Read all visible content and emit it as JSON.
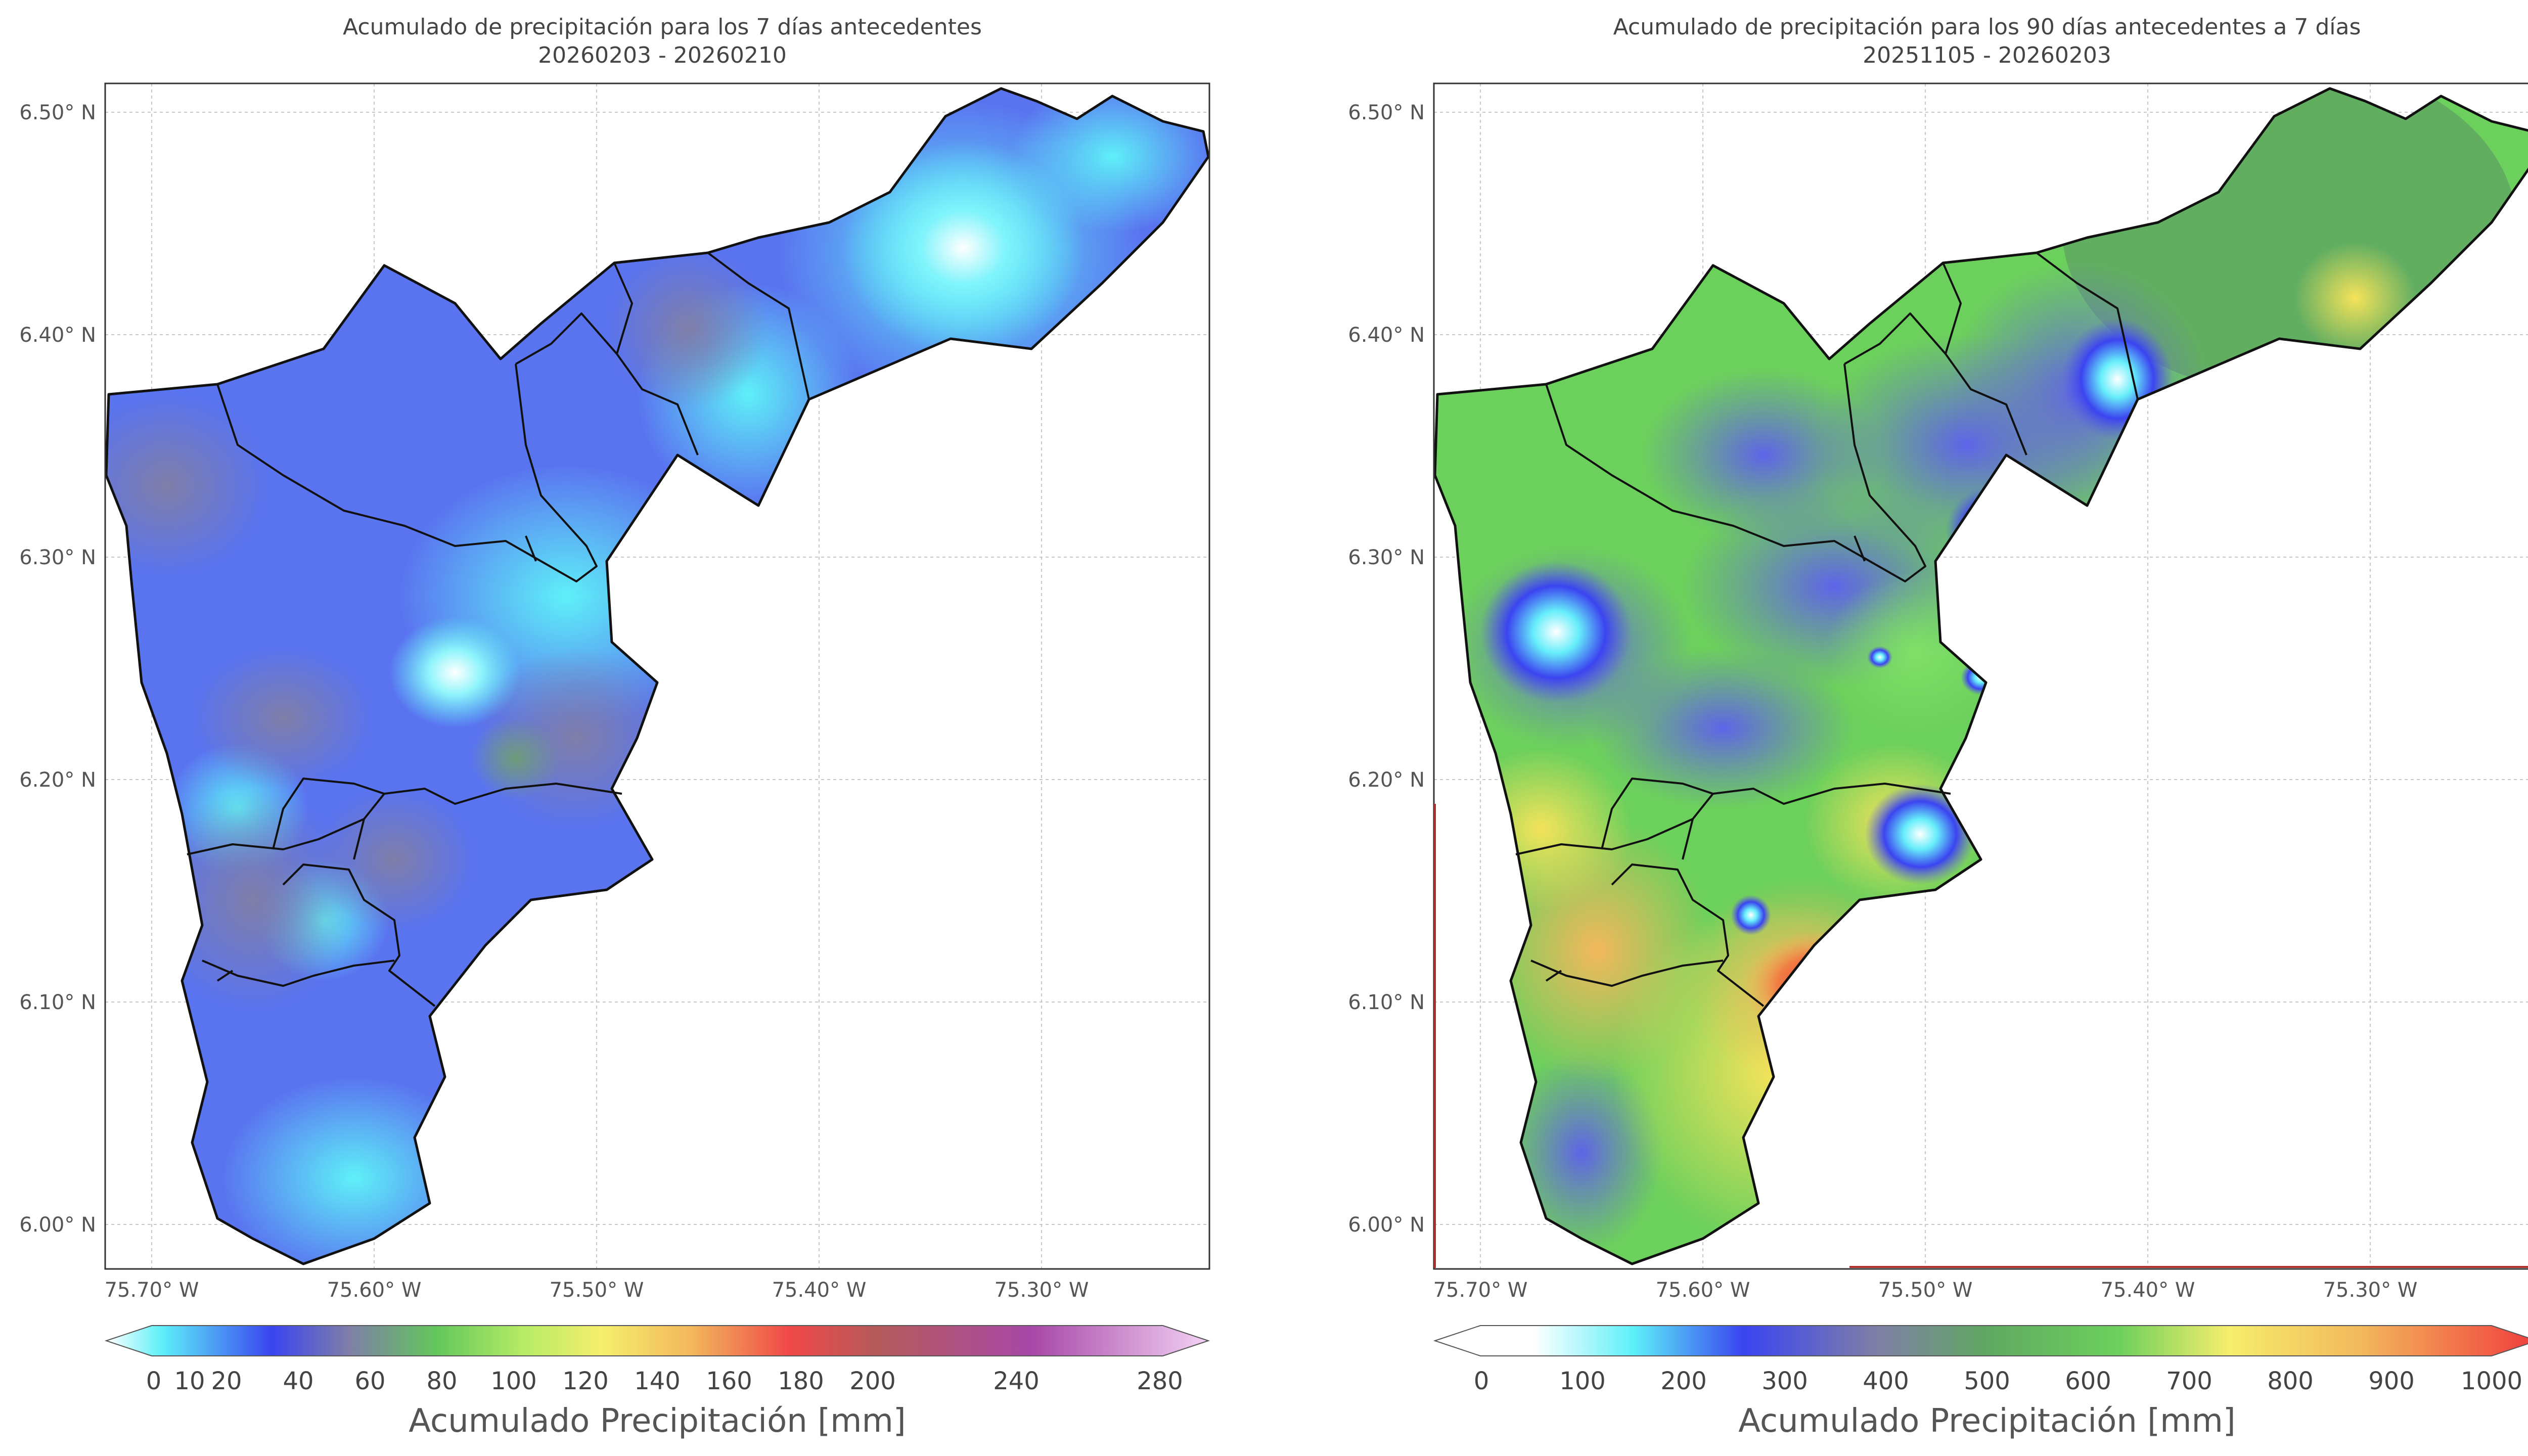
{
  "maps": [
    {
      "title_line1": "Acumulado de precipitación para los 7 días antecedentes",
      "title_line2": "20260203 - 20260210",
      "x_ticks": [
        "75.70° W",
        "75.60° W",
        "75.50° W",
        "75.40° W",
        "75.30° W"
      ],
      "y_ticks": [
        "6.50° N",
        "6.40° N",
        "6.30° N",
        "6.20° N",
        "6.10° N",
        "6.00° N"
      ],
      "colorbar_label": "Acumulado Precipitación [mm]",
      "colorbar_ticks": [
        "0",
        "10",
        "20",
        "40",
        "60",
        "80",
        "100",
        "120",
        "140",
        "160",
        "180",
        "200",
        "240",
        "280"
      ],
      "colorbar_range": [
        0,
        280
      ],
      "dominant_color": "#5a74f0",
      "highlight_color": "#5ef0f8"
    },
    {
      "title_line1": "Acumulado de precipitación para los 90 días antecedentes a 7 días",
      "title_line2": "20251105 - 20260203",
      "x_ticks": [
        "75.70° W",
        "75.60° W",
        "75.50° W",
        "75.40° W",
        "75.30° W"
      ],
      "y_ticks": [
        "6.50° N",
        "6.40° N",
        "6.30° N",
        "6.20° N",
        "6.10° N",
        "6.00° N"
      ],
      "colorbar_label": "Acumulado Precipitación [mm]",
      "colorbar_ticks": [
        "0",
        "100",
        "200",
        "300",
        "400",
        "500",
        "600",
        "700",
        "800",
        "900",
        "1000"
      ],
      "colorbar_range": [
        0,
        1000
      ],
      "dominant_color": "#6cd05c",
      "highlight_color": "#f04848"
    }
  ]
}
